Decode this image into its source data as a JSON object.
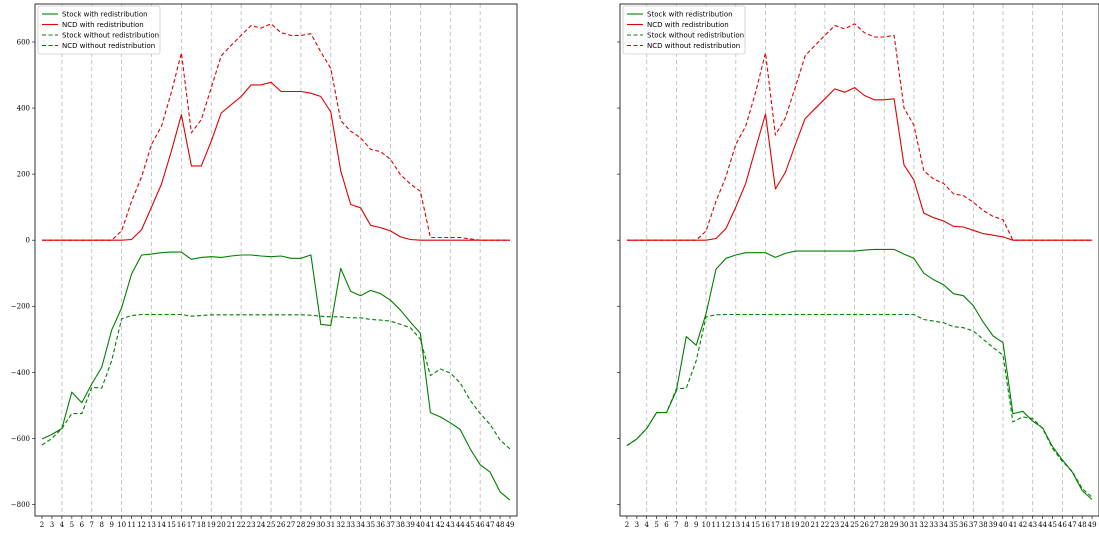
{
  "chart_data": [
    {
      "type": "line",
      "x": [
        2,
        3,
        4,
        5,
        6,
        7,
        8,
        9,
        10,
        11,
        12,
        13,
        14,
        15,
        16,
        17,
        18,
        19,
        20,
        21,
        22,
        23,
        24,
        25,
        26,
        27,
        28,
        29,
        30,
        31,
        32,
        33,
        34,
        35,
        36,
        37,
        38,
        39,
        40,
        41,
        42,
        43,
        44,
        45,
        46,
        47,
        48,
        49
      ],
      "x_ticks": [
        2,
        3,
        4,
        5,
        6,
        7,
        8,
        9,
        10,
        11,
        12,
        13,
        14,
        15,
        16,
        17,
        18,
        19,
        20,
        21,
        22,
        23,
        24,
        25,
        26,
        27,
        28,
        29,
        30,
        31,
        32,
        33,
        34,
        35,
        36,
        37,
        38,
        39,
        40,
        41,
        42,
        43,
        44,
        45,
        46,
        47,
        48,
        49
      ],
      "x_grid": [
        4,
        7,
        10,
        13,
        16,
        19,
        22,
        25,
        28,
        31,
        34,
        37,
        40,
        43,
        46
      ],
      "y_ticks": [
        -800,
        -600,
        -400,
        -200,
        0,
        200,
        400,
        600
      ],
      "y_tick_labels": [
        "−800",
        "−600",
        "−400",
        "−200",
        "0",
        "200",
        "400",
        "600"
      ],
      "xlim": [
        1.3,
        49.7
      ],
      "ylim": [
        -835,
        715
      ],
      "legend_position": "top-left",
      "series": [
        {
          "name": "Stock with redistribution",
          "color": "#008000",
          "style": "solid",
          "values": [
            -602,
            -588,
            -570,
            -460,
            -492,
            -435,
            -385,
            -272,
            -205,
            -102,
            -45,
            -42,
            -38,
            -36,
            -36,
            -58,
            -52,
            -50,
            -52,
            -48,
            -45,
            -45,
            -48,
            -50,
            -48,
            -55,
            -55,
            -45,
            -255,
            -258,
            -85,
            -155,
            -168,
            -152,
            -162,
            -182,
            -212,
            -248,
            -282,
            -522,
            -535,
            -553,
            -573,
            -632,
            -680,
            -702,
            -762,
            -787
          ]
        },
        {
          "name": "NCD with redistribution",
          "color": "#e00000",
          "style": "solid",
          "values": [
            0,
            0,
            0,
            0,
            0,
            0,
            0,
            0,
            0,
            2,
            32,
            100,
            170,
            270,
            380,
            225,
            225,
            300,
            385,
            410,
            435,
            470,
            470,
            478,
            450,
            450,
            450,
            445,
            435,
            388,
            210,
            108,
            98,
            45,
            38,
            28,
            10,
            2,
            0,
            0,
            0,
            0,
            0,
            0,
            0,
            0,
            0,
            0
          ]
        },
        {
          "name": "Stock without redistribution",
          "color": "#008000",
          "style": "dashed",
          "values": [
            -620,
            -600,
            -570,
            -525,
            -525,
            -445,
            -448,
            -365,
            -238,
            -228,
            -225,
            -225,
            -225,
            -225,
            -225,
            -230,
            -228,
            -226,
            -226,
            -226,
            -226,
            -226,
            -226,
            -226,
            -226,
            -226,
            -226,
            -227,
            -230,
            -232,
            -232,
            -235,
            -235,
            -240,
            -242,
            -245,
            -255,
            -265,
            -300,
            -410,
            -390,
            -402,
            -432,
            -485,
            -525,
            -558,
            -605,
            -632
          ]
        },
        {
          "name": "NCD without redistribution",
          "color": "#e00000",
          "style": "dashed",
          "values": [
            0,
            0,
            0,
            0,
            0,
            0,
            0,
            0,
            28,
            118,
            192,
            290,
            345,
            448,
            567,
            325,
            365,
            462,
            558,
            590,
            620,
            650,
            642,
            655,
            628,
            620,
            620,
            625,
            570,
            520,
            362,
            330,
            310,
            275,
            268,
            245,
            198,
            170,
            148,
            8,
            8,
            8,
            8,
            4,
            0,
            0,
            0,
            0
          ]
        }
      ]
    },
    {
      "type": "line",
      "x": [
        2,
        3,
        4,
        5,
        6,
        7,
        8,
        9,
        10,
        11,
        12,
        13,
        14,
        15,
        16,
        17,
        18,
        19,
        20,
        21,
        22,
        23,
        24,
        25,
        26,
        27,
        28,
        29,
        30,
        31,
        32,
        33,
        34,
        35,
        36,
        37,
        38,
        39,
        40,
        41,
        42,
        43,
        44,
        45,
        46,
        47,
        48,
        49
      ],
      "x_ticks": [
        2,
        3,
        4,
        5,
        6,
        7,
        8,
        9,
        10,
        11,
        12,
        13,
        14,
        15,
        16,
        17,
        18,
        19,
        20,
        21,
        22,
        23,
        24,
        25,
        26,
        27,
        28,
        29,
        30,
        31,
        32,
        33,
        34,
        35,
        36,
        37,
        38,
        39,
        40,
        41,
        42,
        43,
        44,
        45,
        46,
        47,
        48,
        49
      ],
      "x_grid": [
        4,
        7,
        10,
        13,
        16,
        19,
        22,
        25,
        28,
        31,
        34,
        37,
        40,
        43,
        46
      ],
      "y_ticks": [
        -800,
        -600,
        -400,
        -200,
        0,
        200,
        400,
        600
      ],
      "y_tick_labels": [
        "",
        "",
        "",
        "",
        "",
        "",
        "",
        ""
      ],
      "xlim": [
        1.3,
        49.7
      ],
      "ylim": [
        -835,
        715
      ],
      "legend_position": "top-left",
      "series": [
        {
          "name": "Stock with redistribution",
          "color": "#008000",
          "style": "solid",
          "values": [
            -622,
            -602,
            -570,
            -522,
            -522,
            -455,
            -292,
            -318,
            -222,
            -88,
            -55,
            -45,
            -38,
            -38,
            -38,
            -52,
            -40,
            -33,
            -33,
            -33,
            -33,
            -33,
            -33,
            -33,
            -30,
            -28,
            -28,
            -28,
            -42,
            -55,
            -100,
            -120,
            -135,
            -162,
            -168,
            -198,
            -248,
            -290,
            -310,
            -525,
            -518,
            -548,
            -568,
            -625,
            -665,
            -702,
            -758,
            -785
          ]
        },
        {
          "name": "NCD with redistribution",
          "color": "#e00000",
          "style": "solid",
          "values": [
            0,
            0,
            0,
            0,
            0,
            0,
            0,
            0,
            0,
            5,
            35,
            100,
            172,
            278,
            382,
            155,
            205,
            288,
            368,
            398,
            428,
            458,
            448,
            462,
            438,
            425,
            425,
            428,
            228,
            182,
            82,
            68,
            58,
            42,
            40,
            30,
            20,
            15,
            10,
            0,
            0,
            0,
            0,
            0,
            0,
            0,
            0,
            0
          ]
        },
        {
          "name": "Stock without redistribution",
          "color": "#008000",
          "style": "dashed",
          "values": [
            -622,
            -602,
            -570,
            -522,
            -522,
            -450,
            -448,
            -365,
            -232,
            -226,
            -225,
            -225,
            -225,
            -225,
            -225,
            -225,
            -225,
            -225,
            -225,
            -225,
            -225,
            -225,
            -225,
            -225,
            -225,
            -225,
            -225,
            -225,
            -225,
            -225,
            -240,
            -245,
            -250,
            -262,
            -265,
            -275,
            -300,
            -325,
            -348,
            -550,
            -535,
            -540,
            -570,
            -630,
            -670,
            -700,
            -752,
            -778
          ]
        },
        {
          "name": "NCD without redistribution",
          "color": "#e00000",
          "style": "dashed",
          "values": [
            0,
            0,
            0,
            0,
            0,
            0,
            0,
            0,
            28,
            118,
            192,
            290,
            345,
            448,
            567,
            318,
            370,
            462,
            558,
            590,
            620,
            650,
            640,
            655,
            628,
            615,
            615,
            620,
            400,
            348,
            210,
            185,
            172,
            140,
            135,
            115,
            90,
            72,
            62,
            0,
            0,
            0,
            0,
            0,
            0,
            0,
            0,
            0
          ]
        }
      ]
    }
  ]
}
